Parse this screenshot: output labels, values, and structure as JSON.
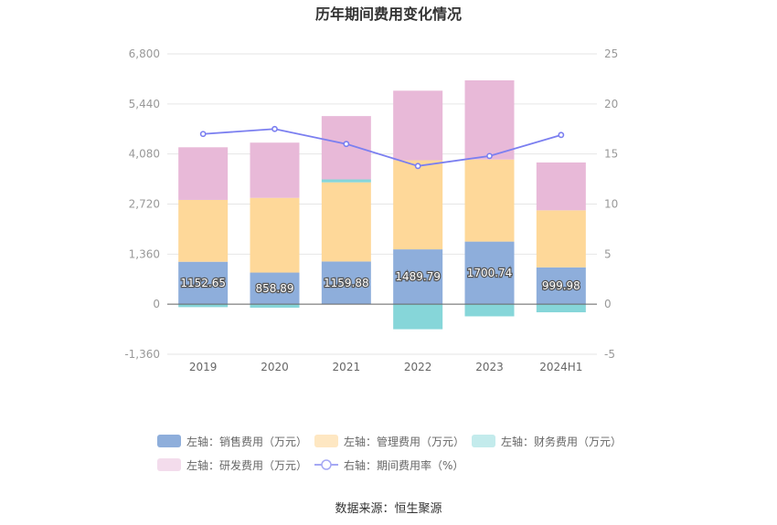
{
  "chart_data": {
    "type": "bar",
    "title": "历年期间费用变化情况",
    "categories": [
      "2019",
      "2020",
      "2021",
      "2022",
      "2023",
      "2024H1"
    ],
    "left_axis": {
      "ticks": [
        "6,800",
        "5,440",
        "4,080",
        "2,720",
        "1,360",
        "0",
        "-1,360"
      ],
      "ylim": [
        -1360,
        6800
      ]
    },
    "right_axis": {
      "ticks": [
        "25",
        "20",
        "15",
        "10",
        "5",
        "0",
        "-5"
      ],
      "ylim": [
        -5,
        25
      ]
    },
    "stacked": true,
    "series": [
      {
        "name": "左轴：销售费用（万元）",
        "type": "bar",
        "color": "#8eaedb",
        "values": [
          1152.65,
          858.89,
          1159.88,
          1489.79,
          1700.74,
          999.98
        ],
        "labels": [
          "1152.65",
          "858.89",
          "1159.88",
          "1489.79",
          "1700.74",
          "999.98"
        ]
      },
      {
        "name": "左轴：管理费用（万元）",
        "type": "bar",
        "color": "#fed899",
        "values": [
          1680,
          2030,
          2150,
          2420,
          2230,
          1550
        ]
      },
      {
        "name": "左轴：财务费用（万元）",
        "type": "bar",
        "color": "#86d6d9",
        "values": [
          -80,
          -95,
          80,
          -680,
          -330,
          -220
        ]
      },
      {
        "name": "左轴：研发费用（万元）",
        "type": "bar",
        "color": "#e8b9d8",
        "values": [
          1430,
          1500,
          1720,
          1890,
          2150,
          1300
        ]
      },
      {
        "name": "右轴：期间费用率（%）",
        "type": "line",
        "axis": "right",
        "color": "#7b7ff0",
        "values": [
          17.0,
          17.5,
          16.0,
          13.8,
          14.8,
          16.9
        ]
      }
    ],
    "legend_position": "bottom",
    "grid": true
  },
  "source_text": "数据来源：恒生聚源"
}
